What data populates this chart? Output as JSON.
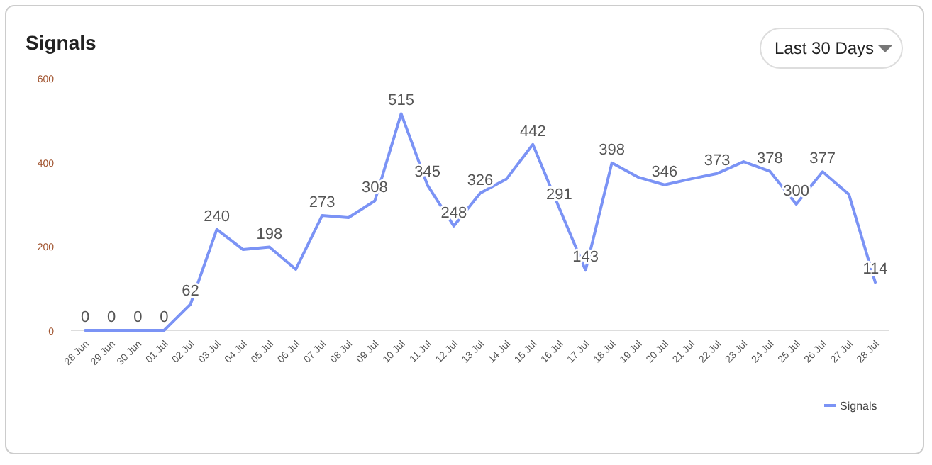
{
  "chart_data": {
    "type": "line",
    "title": "Signals",
    "annotations": [
      "Last 30 Days"
    ],
    "categories": [
      "28 Jun",
      "29 Jun",
      "30 Jun",
      "01 Jul",
      "02 Jul",
      "03 Jul",
      "04 Jul",
      "05 Jul",
      "06 Jul",
      "07 Jul",
      "08 Jul",
      "09 Jul",
      "10 Jul",
      "11 Jul",
      "12 Jul",
      "13 Jul",
      "14 Jul",
      "15 Jul",
      "16 Jul",
      "17 Jul",
      "18 Jul",
      "19 Jul",
      "20 Jul",
      "21 Jul",
      "22 Jul",
      "23 Jul",
      "24 Jul",
      "25 Jul",
      "26 Jul",
      "27 Jul",
      "28 Jul"
    ],
    "series": [
      {
        "name": "Signals",
        "color": "#7b93f5",
        "values": [
          0,
          0,
          0,
          0,
          62,
          240,
          192,
          198,
          145,
          273,
          268,
          308,
          515,
          345,
          248,
          326,
          360,
          442,
          291,
          143,
          398,
          364,
          346,
          360,
          373,
          401,
          378,
          300,
          377,
          323,
          114
        ],
        "value_labels": [
          "0",
          "0",
          "0",
          "0",
          "62",
          "240",
          null,
          "198",
          null,
          "273",
          null,
          "308",
          "515",
          "345",
          "248",
          "326",
          null,
          "442",
          "291",
          "143",
          "398",
          null,
          "346",
          null,
          "373",
          null,
          "378",
          "300",
          "377",
          null,
          "114"
        ]
      }
    ],
    "ylim": [
      0,
      600
    ],
    "yticks": [
      0,
      200,
      400,
      600
    ],
    "grid": false,
    "legend": "bottom right",
    "marker": "none",
    "line_style": "solid"
  }
}
